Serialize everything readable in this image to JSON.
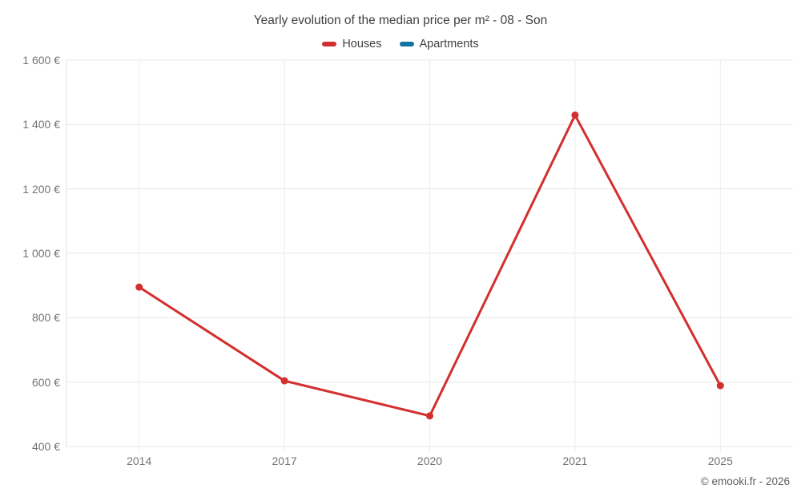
{
  "title": "Yearly evolution of the median price per m² - 08 - Son",
  "legend": [
    {
      "label": "Houses",
      "color": "#d32f2e"
    },
    {
      "label": "Apartments",
      "color": "#1272a2"
    }
  ],
  "footer": {
    "copyright": "© emooki.fr - 2026"
  },
  "chart_data": {
    "type": "line",
    "title": "Yearly evolution of the median price per m² - 08 - Son",
    "categories": [
      "2014",
      "2017",
      "2020",
      "2021",
      "2025"
    ],
    "series": [
      {
        "name": "Houses",
        "color": "#d32f2e",
        "values": [
          895,
          604,
          495,
          1429,
          589
        ]
      },
      {
        "name": "Apartments",
        "color": "#1272a2",
        "values": []
      }
    ],
    "xlabel": "",
    "ylabel": "",
    "ylim": [
      400,
      1600
    ],
    "ytick_step": 200,
    "ytick_labels": [
      "400 €",
      "600 €",
      "800 €",
      "1 000 €",
      "1 200 €",
      "1 400 €",
      "1 600 €"
    ],
    "currency_suffix": " €",
    "grid": true,
    "legend_position": "top",
    "marker": "circle"
  }
}
